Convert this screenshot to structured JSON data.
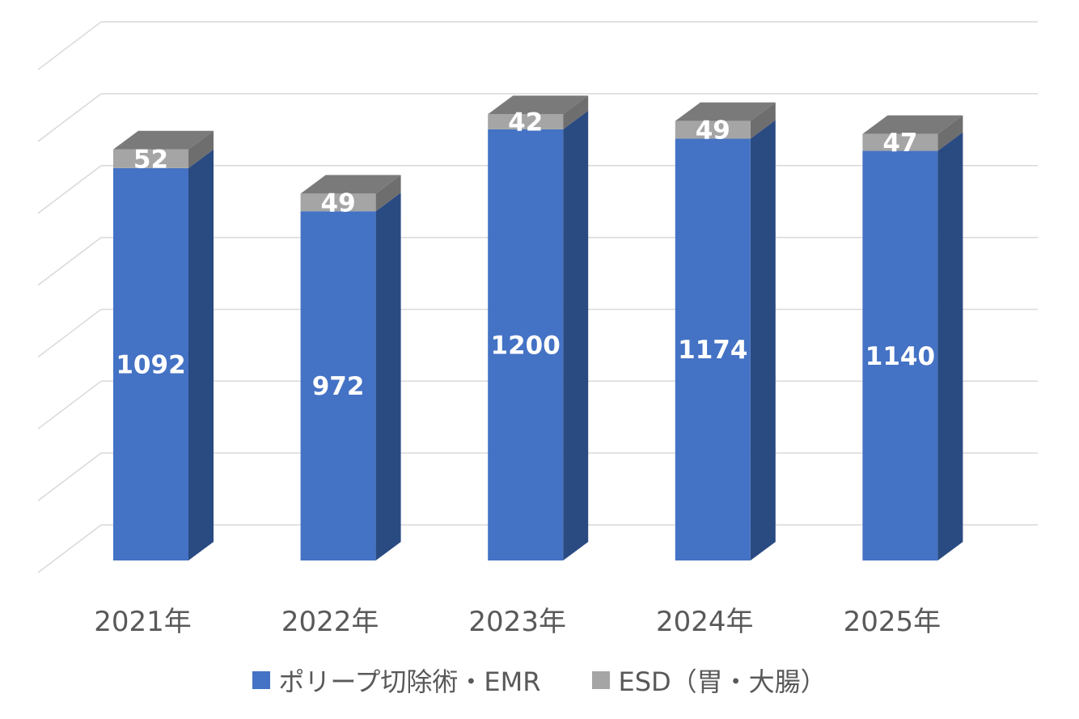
{
  "chart_data": {
    "type": "bar",
    "stacked": true,
    "three_d": true,
    "categories": [
      "2021年",
      "2022年",
      "2023年",
      "2024年",
      "2025年"
    ],
    "series": [
      {
        "name": "ポリープ切除術・EMR",
        "values": [
          1092,
          972,
          1200,
          1174,
          1140
        ],
        "color": "#4472C4"
      },
      {
        "name": "ESD（胃・大腸）",
        "values": [
          52,
          49,
          42,
          49,
          47
        ],
        "color": "#A5A5A5"
      }
    ],
    "ylim": [
      0,
      1400
    ],
    "grid": true,
    "legend_position": "bottom"
  }
}
